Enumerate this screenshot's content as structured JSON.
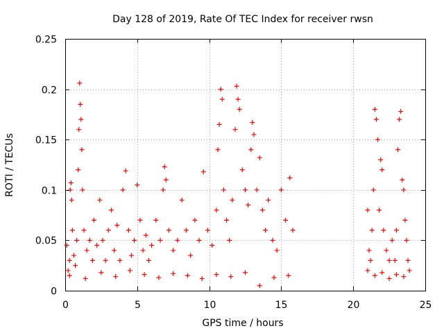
{
  "chart_data": {
    "type": "scatter",
    "title": "Day 128 of 2019, Rate Of TEC Index for receiver rwsn",
    "xlabel": "GPS time / hours",
    "ylabel": "ROTI / TECUs",
    "xlim": [
      0,
      25
    ],
    "ylim": [
      0,
      0.25
    ],
    "x_ticks": [
      "0",
      "5",
      "10",
      "15",
      "20",
      "25"
    ],
    "y_ticks": [
      "0",
      "0.05",
      "0.1",
      "0.15",
      "0.2",
      "0.25"
    ],
    "x_tick_values": [
      0,
      5,
      10,
      15,
      20,
      25
    ],
    "y_tick_values": [
      0,
      0.05,
      0.1,
      0.15,
      0.2,
      0.25
    ],
    "grid": true,
    "marker": "+",
    "color": "#ff0000",
    "series": [
      {
        "name": "ROTI",
        "points": [
          [
            0.1,
            0.045
          ],
          [
            0.2,
            0.02
          ],
          [
            0.3,
            0.03
          ],
          [
            0.35,
            0.1
          ],
          [
            0.4,
            0.107
          ],
          [
            0.45,
            0.09
          ],
          [
            0.5,
            0.06
          ],
          [
            0.6,
            0.035
          ],
          [
            0.7,
            0.025
          ],
          [
            0.8,
            0.05
          ],
          [
            0.9,
            0.12
          ],
          [
            0.95,
            0.16
          ],
          [
            1.0,
            0.206
          ],
          [
            1.05,
            0.185
          ],
          [
            1.1,
            0.17
          ],
          [
            1.15,
            0.14
          ],
          [
            1.2,
            0.1
          ],
          [
            1.3,
            0.06
          ],
          [
            1.5,
            0.04
          ],
          [
            1.7,
            0.05
          ],
          [
            1.9,
            0.03
          ],
          [
            2.0,
            0.07
          ],
          [
            2.2,
            0.045
          ],
          [
            2.4,
            0.09
          ],
          [
            2.6,
            0.05
          ],
          [
            2.8,
            0.03
          ],
          [
            3.0,
            0.06
          ],
          [
            3.2,
            0.08
          ],
          [
            3.4,
            0.04
          ],
          [
            3.6,
            0.065
          ],
          [
            3.8,
            0.03
          ],
          [
            4.0,
            0.1
          ],
          [
            4.2,
            0.119
          ],
          [
            4.4,
            0.06
          ],
          [
            4.6,
            0.035
          ],
          [
            4.8,
            0.05
          ],
          [
            5.0,
            0.105
          ],
          [
            5.2,
            0.07
          ],
          [
            5.4,
            0.04
          ],
          [
            5.6,
            0.055
          ],
          [
            5.8,
            0.03
          ],
          [
            6.0,
            0.045
          ],
          [
            6.3,
            0.07
          ],
          [
            6.6,
            0.05
          ],
          [
            6.8,
            0.1
          ],
          [
            6.9,
            0.123
          ],
          [
            7.0,
            0.11
          ],
          [
            7.2,
            0.06
          ],
          [
            7.5,
            0.04
          ],
          [
            7.8,
            0.05
          ],
          [
            8.1,
            0.09
          ],
          [
            8.4,
            0.06
          ],
          [
            8.7,
            0.035
          ],
          [
            9.0,
            0.07
          ],
          [
            9.3,
            0.05
          ],
          [
            9.6,
            0.118
          ],
          [
            9.9,
            0.06
          ],
          [
            10.2,
            0.045
          ],
          [
            10.5,
            0.08
          ],
          [
            10.6,
            0.14
          ],
          [
            10.7,
            0.165
          ],
          [
            10.8,
            0.2
          ],
          [
            10.9,
            0.19
          ],
          [
            11.0,
            0.1
          ],
          [
            11.2,
            0.07
          ],
          [
            11.4,
            0.05
          ],
          [
            11.6,
            0.09
          ],
          [
            11.8,
            0.16
          ],
          [
            11.9,
            0.203
          ],
          [
            12.0,
            0.19
          ],
          [
            12.1,
            0.18
          ],
          [
            12.3,
            0.12
          ],
          [
            12.5,
            0.1
          ],
          [
            12.7,
            0.085
          ],
          [
            12.9,
            0.14
          ],
          [
            13.0,
            0.167
          ],
          [
            13.1,
            0.155
          ],
          [
            13.3,
            0.1
          ],
          [
            13.5,
            0.132
          ],
          [
            13.7,
            0.08
          ],
          [
            13.9,
            0.06
          ],
          [
            14.1,
            0.09
          ],
          [
            14.4,
            0.05
          ],
          [
            14.7,
            0.04
          ],
          [
            15.0,
            0.1
          ],
          [
            15.3,
            0.07
          ],
          [
            15.6,
            0.112
          ],
          [
            15.8,
            0.06
          ],
          [
            0.3,
            0.015
          ],
          [
            1.4,
            0.012
          ],
          [
            2.5,
            0.018
          ],
          [
            3.5,
            0.014
          ],
          [
            4.5,
            0.02
          ],
          [
            5.5,
            0.016
          ],
          [
            6.5,
            0.013
          ],
          [
            7.5,
            0.017
          ],
          [
            8.5,
            0.015
          ],
          [
            9.5,
            0.012
          ],
          [
            10.5,
            0.016
          ],
          [
            11.5,
            0.014
          ],
          [
            12.5,
            0.018
          ],
          [
            13.5,
            0.005
          ],
          [
            14.5,
            0.013
          ],
          [
            15.5,
            0.015
          ],
          [
            21.0,
            0.08
          ],
          [
            21.1,
            0.04
          ],
          [
            21.2,
            0.03
          ],
          [
            21.3,
            0.06
          ],
          [
            21.4,
            0.1
          ],
          [
            21.5,
            0.18
          ],
          [
            21.6,
            0.17
          ],
          [
            21.7,
            0.15
          ],
          [
            21.8,
            0.08
          ],
          [
            21.9,
            0.13
          ],
          [
            22.0,
            0.12
          ],
          [
            22.1,
            0.06
          ],
          [
            22.3,
            0.04
          ],
          [
            22.5,
            0.03
          ],
          [
            22.7,
            0.05
          ],
          [
            22.9,
            0.03
          ],
          [
            23.0,
            0.06
          ],
          [
            23.1,
            0.14
          ],
          [
            23.2,
            0.17
          ],
          [
            23.3,
            0.178
          ],
          [
            23.4,
            0.11
          ],
          [
            23.5,
            0.1
          ],
          [
            23.6,
            0.07
          ],
          [
            23.7,
            0.05
          ],
          [
            23.8,
            0.03
          ],
          [
            21.0,
            0.02
          ],
          [
            21.5,
            0.015
          ],
          [
            22.0,
            0.018
          ],
          [
            22.5,
            0.012
          ],
          [
            23.0,
            0.016
          ],
          [
            23.5,
            0.014
          ],
          [
            23.9,
            0.02
          ]
        ]
      }
    ]
  }
}
